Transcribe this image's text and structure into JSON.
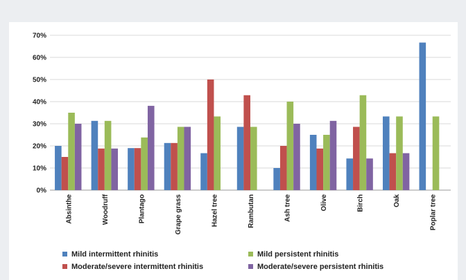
{
  "chart_data": {
    "type": "bar",
    "title": "",
    "xlabel": "",
    "ylabel": "",
    "ylim": [
      0,
      70
    ],
    "y_ticks": [
      0,
      10,
      20,
      30,
      40,
      50,
      60,
      70
    ],
    "y_tick_format": "{v}%",
    "grid": true,
    "legend_position": "bottom",
    "categories": [
      "Absinthe",
      "Woodruff",
      "Plantago",
      "Grape grass",
      "Hazel tree",
      "Rambutan",
      "Ash tree",
      "Olive",
      "Birch",
      "Oak",
      "Poplar tree"
    ],
    "series": [
      {
        "name": "Mild intermittent rhinitis",
        "color": "#4f81bd",
        "values": [
          20,
          31.3,
          19,
          21.3,
          16.7,
          28.6,
          10,
          25,
          14.3,
          33.3,
          66.7
        ]
      },
      {
        "name": "Moderate/severe intermittent rhinitis",
        "color": "#c0504d",
        "values": [
          15,
          18.8,
          19,
          21.3,
          50,
          42.9,
          20,
          18.8,
          28.6,
          16.7,
          0
        ]
      },
      {
        "name": "Mild persistent rhinitis",
        "color": "#9bbb59",
        "values": [
          35,
          31.3,
          23.8,
          28.6,
          33.3,
          28.6,
          40,
          25,
          42.9,
          33.3,
          33.3
        ]
      },
      {
        "name": "Moderate/severe persistent rhinitis",
        "color": "#8064a2",
        "values": [
          30,
          18.8,
          38.1,
          28.6,
          0,
          0,
          30,
          31.3,
          14.3,
          16.7,
          0
        ]
      }
    ],
    "legend_order": [
      0,
      2,
      1,
      3
    ]
  }
}
